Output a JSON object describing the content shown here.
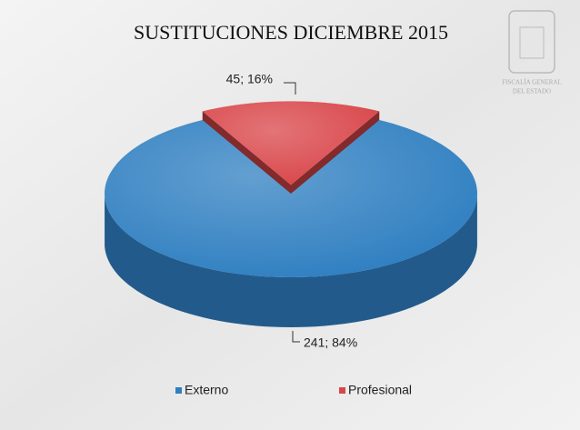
{
  "chart_data": {
    "type": "pie",
    "title": "SUSTITUCIONES DICIEMBRE 2015",
    "categories": [
      "Externo",
      "Profesional"
    ],
    "values": [
      241,
      45
    ],
    "value_labels": [
      "241; 84%",
      "45; 16%"
    ],
    "colors": [
      "#2f7fc1",
      "#d9464a"
    ],
    "legend": "bottom"
  },
  "logo": {
    "lines": [
      "FISCALÍA GENERAL",
      "DEL ESTADO"
    ]
  }
}
